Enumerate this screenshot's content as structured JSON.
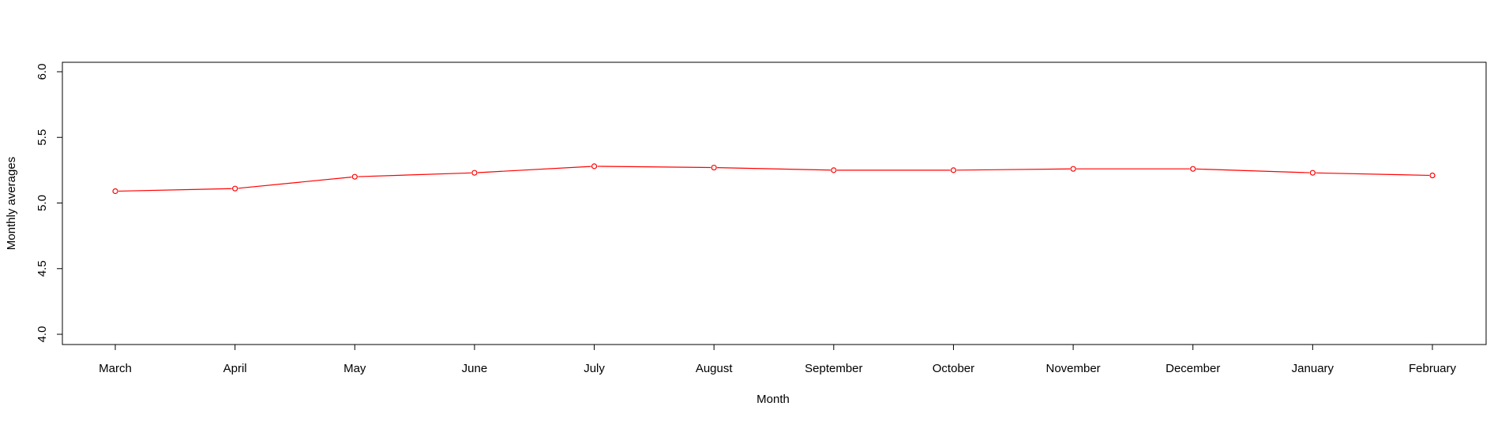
{
  "chart_data": {
    "type": "line",
    "title": "",
    "xlabel": "Month",
    "ylabel": "Monthly averages",
    "categories": [
      "March",
      "April",
      "May",
      "June",
      "July",
      "August",
      "September",
      "October",
      "November",
      "December",
      "January",
      "February"
    ],
    "series": [
      {
        "values": [
          5.09,
          5.11,
          5.2,
          5.23,
          5.28,
          5.27,
          5.25,
          5.25,
          5.26,
          5.26,
          5.23,
          5.21
        ],
        "color": "#ff0000",
        "marker": "open-circle"
      }
    ],
    "ylim": [
      4.0,
      6.0
    ],
    "yticks": [
      "4.0",
      "4.5",
      "5.0",
      "5.5",
      "6.0"
    ],
    "grid": false,
    "legend": "none"
  }
}
